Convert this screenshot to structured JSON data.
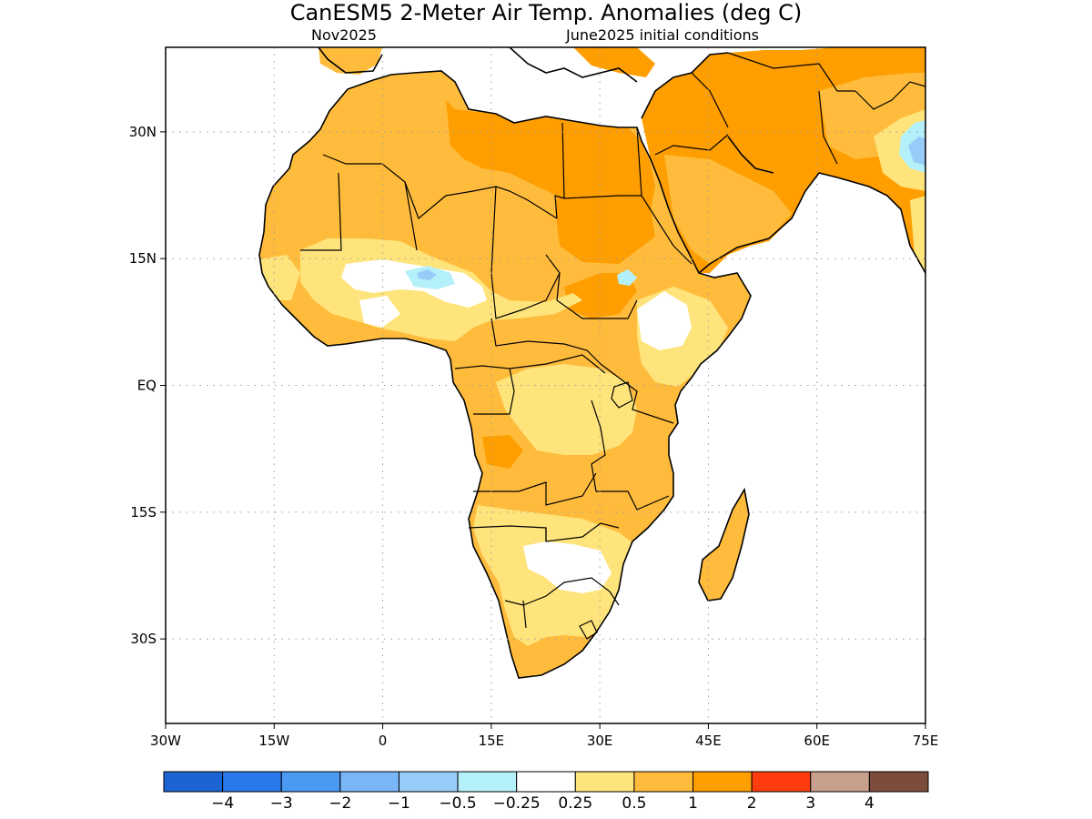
{
  "title": "CanESM5 2-Meter Air Temp. Anomalies (deg C)",
  "valid_month": "Nov2025",
  "initial_conditions": "June2025 initial conditions",
  "map": {
    "region": "Africa",
    "lon_range": [
      -30,
      75
    ],
    "lat_range": [
      -40,
      40
    ],
    "lon_ticks": [
      {
        "value": -30,
        "label": "30W"
      },
      {
        "value": -15,
        "label": "15W"
      },
      {
        "value": 0,
        "label": "0"
      },
      {
        "value": 15,
        "label": "15E"
      },
      {
        "value": 30,
        "label": "30E"
      },
      {
        "value": 45,
        "label": "45E"
      },
      {
        "value": 60,
        "label": "60E"
      },
      {
        "value": 75,
        "label": "75E"
      }
    ],
    "lat_ticks": [
      {
        "value": 30,
        "label": "30N"
      },
      {
        "value": 15,
        "label": "15N"
      },
      {
        "value": 0,
        "label": "EQ"
      },
      {
        "value": -15,
        "label": "15S"
      },
      {
        "value": -30,
        "label": "30S"
      }
    ],
    "grid": true
  },
  "colorbar": {
    "colors": [
      "#1c64d4",
      "#2a78ec",
      "#4a9af4",
      "#78b6f8",
      "#98ccf8",
      "#b4f0fa",
      "#ffffff",
      "#ffe47c",
      "#ffbc3c",
      "#ff9e00",
      "#ff3c0e",
      "#c89e8c",
      "#7c4c3c"
    ],
    "labels": [
      "−4",
      "−3",
      "−2",
      "−1",
      "−0.5",
      "−0.25",
      "0.25",
      "0.5",
      "1",
      "2",
      "3",
      "4"
    ]
  },
  "anomaly_colors": {
    "white": "#ffffff",
    "light_yellow": "#ffe47c",
    "light_orange": "#ffbc3c",
    "orange": "#ff9e00",
    "light_blue": "#b4f0fa",
    "blue": "#98ccf8"
  }
}
